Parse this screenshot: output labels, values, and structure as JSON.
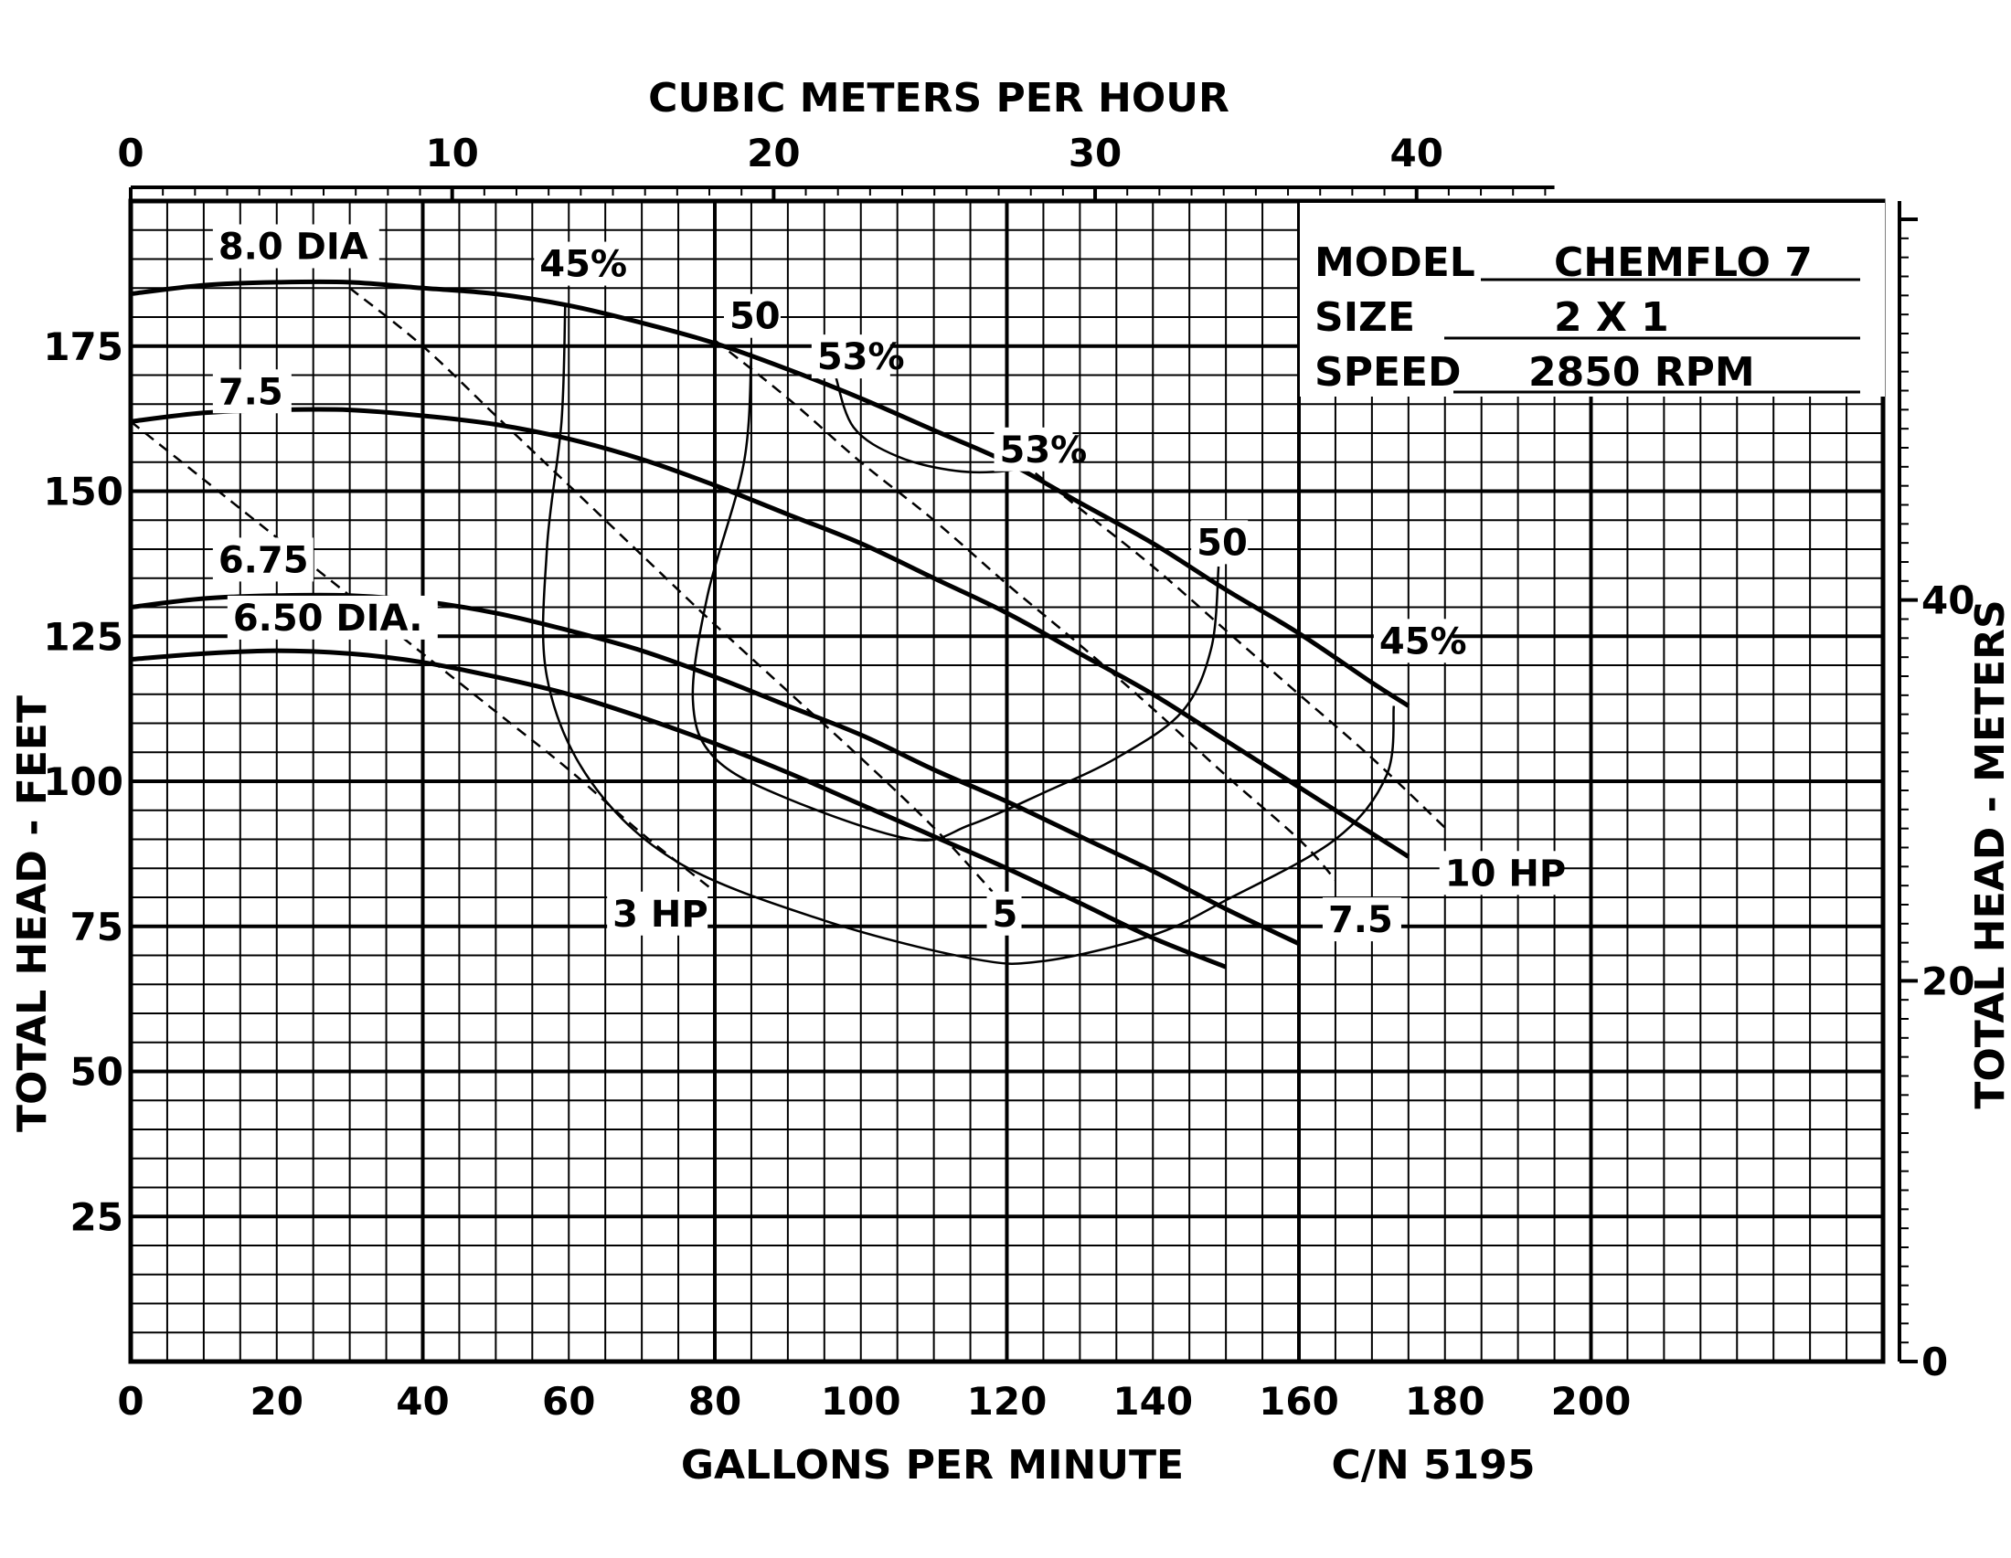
{
  "chart_data": {
    "type": "line",
    "title": "CUBIC METERS PER HOUR",
    "xlabel": "GALLONS PER MINUTE",
    "ylabel": "TOTAL HEAD - FEET",
    "y2label": "TOTAL HEAD - METERS",
    "catalog_number": "C/N 5195",
    "xlim": [
      0,
      240
    ],
    "ylim": [
      0,
      200
    ],
    "x_ticks": [
      0,
      20,
      40,
      60,
      80,
      100,
      120,
      140,
      160,
      180,
      200
    ],
    "y_ticks": [
      25,
      50,
      75,
      100,
      125,
      150,
      175
    ],
    "x2_ticks": [
      0,
      10,
      20,
      30,
      40
    ],
    "y2_ticks": [
      0,
      20,
      40
    ],
    "grid": true,
    "info": {
      "model_label": "MODEL",
      "model_value": "CHEMFLO 7",
      "size_label": "SIZE",
      "size_value": "2 X 1",
      "speed_label": "SPEED",
      "speed_value": "2850 RPM"
    },
    "head_curves": [
      {
        "name": "8.0 DIA",
        "points": [
          [
            0,
            184
          ],
          [
            10,
            185.5
          ],
          [
            20,
            186
          ],
          [
            30,
            186
          ],
          [
            40,
            185
          ],
          [
            50,
            184
          ],
          [
            60,
            182
          ],
          [
            70,
            179
          ],
          [
            80,
            175.5
          ],
          [
            90,
            171
          ],
          [
            100,
            166
          ],
          [
            110,
            160.5
          ],
          [
            120,
            155
          ],
          [
            130,
            148
          ],
          [
            140,
            141
          ],
          [
            150,
            133
          ],
          [
            160,
            125.5
          ],
          [
            170,
            117
          ],
          [
            175,
            113
          ]
        ]
      },
      {
        "name": "7.5",
        "points": [
          [
            0,
            162
          ],
          [
            10,
            163.5
          ],
          [
            20,
            164
          ],
          [
            30,
            164
          ],
          [
            40,
            163
          ],
          [
            50,
            161.5
          ],
          [
            60,
            159
          ],
          [
            70,
            155.5
          ],
          [
            80,
            151
          ],
          [
            90,
            146
          ],
          [
            100,
            141
          ],
          [
            110,
            135
          ],
          [
            120,
            129
          ],
          [
            130,
            122
          ],
          [
            140,
            115
          ],
          [
            150,
            107
          ],
          [
            160,
            99
          ],
          [
            170,
            91
          ],
          [
            175,
            87
          ]
        ]
      },
      {
        "name": "6.75",
        "points": [
          [
            0,
            130
          ],
          [
            10,
            131.5
          ],
          [
            20,
            132
          ],
          [
            30,
            132
          ],
          [
            40,
            131
          ],
          [
            50,
            129
          ],
          [
            60,
            126
          ],
          [
            70,
            122.5
          ],
          [
            80,
            118
          ],
          [
            90,
            113
          ],
          [
            100,
            108
          ],
          [
            110,
            102
          ],
          [
            120,
            96.5
          ],
          [
            130,
            90.5
          ],
          [
            140,
            84.5
          ],
          [
            150,
            78
          ],
          [
            160,
            72
          ]
        ]
      },
      {
        "name": "6.50 DIA.",
        "points": [
          [
            0,
            121
          ],
          [
            10,
            122
          ],
          [
            20,
            122.5
          ],
          [
            30,
            122
          ],
          [
            40,
            120.5
          ],
          [
            50,
            118
          ],
          [
            60,
            115
          ],
          [
            70,
            111
          ],
          [
            80,
            106.5
          ],
          [
            90,
            101.5
          ],
          [
            100,
            96
          ],
          [
            110,
            90.5
          ],
          [
            120,
            85
          ],
          [
            130,
            79
          ],
          [
            140,
            73
          ],
          [
            150,
            68
          ]
        ]
      }
    ],
    "efficiency_curves": [
      {
        "name": "45%",
        "points": [
          [
            59.5,
            182
          ],
          [
            59,
            162
          ],
          [
            57,
            140
          ],
          [
            57,
            118
          ],
          [
            63,
            100
          ],
          [
            75,
            86
          ],
          [
            95,
            76
          ],
          [
            115,
            69.5
          ],
          [
            125,
            69
          ],
          [
            140,
            73.5
          ],
          [
            150,
            79.5
          ],
          [
            165,
            90
          ],
          [
            172,
            101
          ],
          [
            173,
            113
          ]
        ]
      },
      {
        "name": "50",
        "points": [
          [
            85,
            174
          ],
          [
            84,
            155
          ],
          [
            79,
            132
          ],
          [
            77,
            114
          ],
          [
            80,
            104
          ],
          [
            90,
            97
          ],
          [
            107,
            90
          ],
          [
            115,
            92.5
          ],
          [
            125,
            98
          ],
          [
            135,
            104
          ],
          [
            144,
            112
          ],
          [
            148,
            123
          ],
          [
            149,
            137
          ]
        ]
      },
      {
        "name": "53%",
        "points": [
          [
            96.5,
            170
          ],
          [
            99,
            161
          ],
          [
            105,
            156
          ],
          [
            113,
            153.5
          ],
          [
            120,
            153.5
          ],
          [
            125,
            155
          ]
        ]
      }
    ],
    "power_curves": [
      {
        "name": "3 HP",
        "points": [
          [
            0,
            162
          ],
          [
            10,
            152
          ],
          [
            20,
            142
          ],
          [
            30,
            132
          ],
          [
            40,
            122
          ],
          [
            50,
            112
          ],
          [
            60,
            102
          ],
          [
            70,
            91
          ],
          [
            80,
            81
          ]
        ]
      },
      {
        "name": "5",
        "points": [
          [
            30,
            185
          ],
          [
            40,
            175
          ],
          [
            50,
            163
          ],
          [
            60,
            151
          ],
          [
            70,
            139
          ],
          [
            80,
            127
          ],
          [
            90,
            115.5
          ],
          [
            100,
            104
          ],
          [
            110,
            92
          ],
          [
            118,
            81
          ]
        ]
      },
      {
        "name": "7.5",
        "points": [
          [
            80,
            176
          ],
          [
            90,
            166
          ],
          [
            100,
            155
          ],
          [
            110,
            145
          ],
          [
            120,
            134
          ],
          [
            130,
            123.5
          ],
          [
            140,
            112.5
          ],
          [
            150,
            101
          ],
          [
            160,
            90
          ],
          [
            165,
            83
          ]
        ]
      },
      {
        "name": "10 HP",
        "points": [
          [
            120,
            157
          ],
          [
            130,
            147
          ],
          [
            140,
            137
          ],
          [
            150,
            126
          ],
          [
            160,
            115
          ],
          [
            170,
            104
          ],
          [
            180,
            92
          ]
        ]
      }
    ],
    "curve_labels": {
      "dia_80": "8.0 DIA",
      "dia_75": "7.5",
      "dia_675": "6.75",
      "dia_650": "6.50 DIA.",
      "eff_45_top": "45%",
      "eff_50_top": "50",
      "eff_53_top": "53%",
      "eff_53_right": "53%",
      "eff_50_right": "50",
      "eff_45_right": "45%",
      "hp_3": "3 HP",
      "hp_5": "5",
      "hp_75": "7.5",
      "hp_10": "10 HP"
    }
  }
}
